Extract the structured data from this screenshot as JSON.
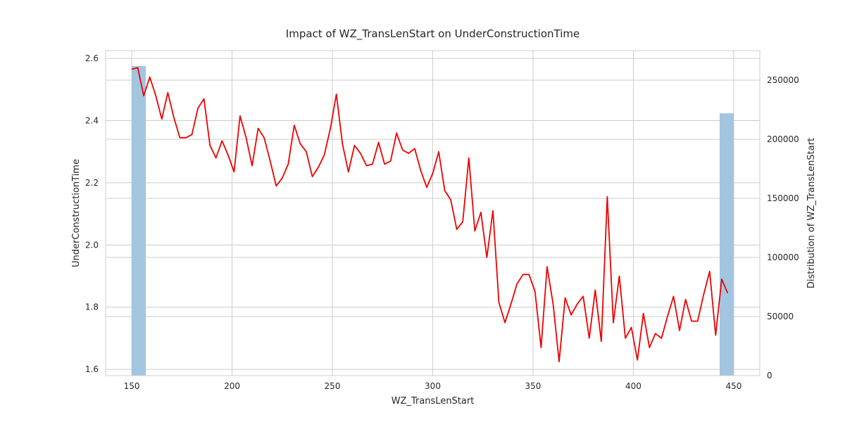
{
  "chart_data": {
    "type": "line",
    "title": "Impact of WZ_TransLenStart on UnderConstructionTime",
    "xlabel": "WZ_TransLenStart",
    "ylabel": "UnderConstructionTime",
    "y2label": "Distribution of WZ_TransLenStart",
    "xlim": [
      137,
      463
    ],
    "ylim": [
      1.58,
      2.625
    ],
    "y2lim": [
      0,
      275000
    ],
    "xticks": [
      "150",
      "200",
      "250",
      "300",
      "350",
      "400",
      "450"
    ],
    "yticks": [
      "1.6",
      "1.8",
      "2.0",
      "2.2",
      "2.4",
      "2.6"
    ],
    "y2ticks": [
      "0",
      "50000",
      "100000",
      "150000",
      "200000",
      "250000"
    ],
    "grid": true,
    "line_color": "#ee0000",
    "bar_color": "#a3c6e0",
    "series": [
      {
        "type": "line",
        "x": [
          150,
          153,
          156,
          159,
          162,
          165,
          168,
          171,
          174,
          177,
          180,
          183,
          186,
          189,
          192,
          195,
          198,
          201,
          204,
          207,
          210,
          213,
          216,
          219,
          222,
          225,
          228,
          231,
          234,
          237,
          240,
          243,
          246,
          249,
          252,
          255,
          258,
          261,
          264,
          267,
          270,
          273,
          276,
          279,
          282,
          285,
          288,
          291,
          294,
          297,
          300,
          303,
          306,
          309,
          312,
          315,
          318,
          321,
          324,
          327,
          330,
          333,
          336,
          339,
          342,
          345,
          348,
          351,
          354,
          357,
          360,
          363,
          366,
          369,
          372,
          375,
          378,
          381,
          384,
          387,
          390,
          393,
          396,
          399,
          402,
          405,
          408,
          411,
          414,
          417,
          420,
          423,
          426,
          429,
          432,
          435,
          438,
          441,
          444,
          447
        ],
        "y": [
          2.565,
          2.57,
          2.48,
          2.54,
          2.48,
          2.405,
          2.49,
          2.41,
          2.345,
          2.345,
          2.355,
          2.44,
          2.47,
          2.32,
          2.28,
          2.335,
          2.29,
          2.235,
          2.415,
          2.345,
          2.255,
          2.375,
          2.345,
          2.27,
          2.19,
          2.215,
          2.26,
          2.385,
          2.325,
          2.3,
          2.22,
          2.25,
          2.29,
          2.375,
          2.485,
          2.325,
          2.235,
          2.32,
          2.295,
          2.255,
          2.26,
          2.33,
          2.26,
          2.27,
          2.36,
          2.305,
          2.295,
          2.31,
          2.24,
          2.185,
          2.23,
          2.3,
          2.175,
          2.145,
          2.05,
          2.075,
          2.28,
          2.045,
          2.105,
          1.96,
          2.11,
          1.815,
          1.75,
          1.81,
          1.875,
          1.905,
          1.905,
          1.85,
          1.67,
          1.93,
          1.81,
          1.625,
          1.83,
          1.775,
          1.81,
          1.835,
          1.7,
          1.855,
          1.69,
          2.155,
          1.75,
          1.9,
          1.7,
          1.735,
          1.63,
          1.78,
          1.67,
          1.715,
          1.7,
          1.77,
          1.835,
          1.725,
          1.825,
          1.755,
          1.755,
          1.84,
          1.915,
          1.71,
          1.89,
          1.845
        ]
      },
      {
        "type": "bar",
        "bins": [
          {
            "x0": 150,
            "x1": 157,
            "value": 262000
          },
          {
            "x0": 443,
            "x1": 450,
            "value": 222000
          }
        ]
      }
    ]
  }
}
